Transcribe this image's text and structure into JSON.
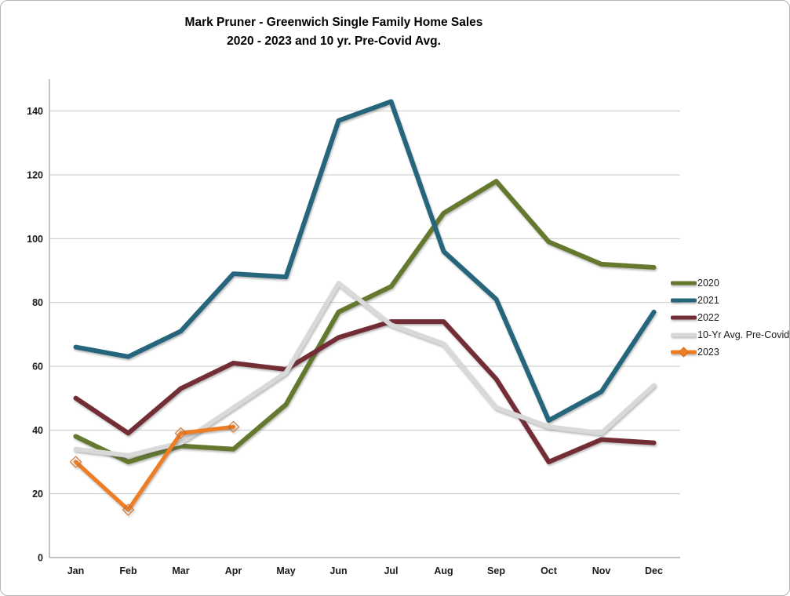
{
  "chart_data": {
    "type": "line",
    "title_line1": "Mark Pruner - Greenwich Single Family Home Sales",
    "title_line2": "2020 - 2023 and 10 yr. Pre-Covid Avg.",
    "categories": [
      "Jan",
      "Feb",
      "Mar",
      "Apr",
      "May",
      "Jun",
      "Jul",
      "Aug",
      "Sep",
      "Oct",
      "Nov",
      "Dec"
    ],
    "y_ticks": [
      0,
      20,
      40,
      60,
      80,
      100,
      120,
      140
    ],
    "ylim": [
      0,
      150
    ],
    "grid": true,
    "legend_position": "right",
    "series": [
      {
        "name": "2020",
        "color": "#64792e",
        "marker": "none",
        "values": [
          38,
          30,
          35,
          34,
          48,
          77,
          85,
          108,
          118,
          99,
          92,
          91
        ]
      },
      {
        "name": "2021",
        "color": "#26667c",
        "marker": "none",
        "values": [
          66,
          63,
          71,
          89,
          88,
          137,
          143,
          96,
          81,
          43,
          52,
          77
        ]
      },
      {
        "name": "2022",
        "color": "#722d35",
        "marker": "none",
        "values": [
          50,
          39,
          53,
          61,
          59,
          69,
          74,
          74,
          56,
          30,
          37,
          36
        ]
      },
      {
        "name": "10-Yr Avg. Pre-Covid",
        "color": "#d9d9d9",
        "marker": "none",
        "values": [
          34,
          32,
          36,
          47,
          58,
          86,
          73,
          67,
          47,
          41,
          39,
          54
        ]
      },
      {
        "name": "2023",
        "color": "#ee7d23",
        "marker": "diamond",
        "marker_edge_color": "#d96c1e",
        "values": [
          30,
          15,
          39,
          41,
          null,
          null,
          null,
          null,
          null,
          null,
          null,
          null
        ]
      }
    ]
  }
}
